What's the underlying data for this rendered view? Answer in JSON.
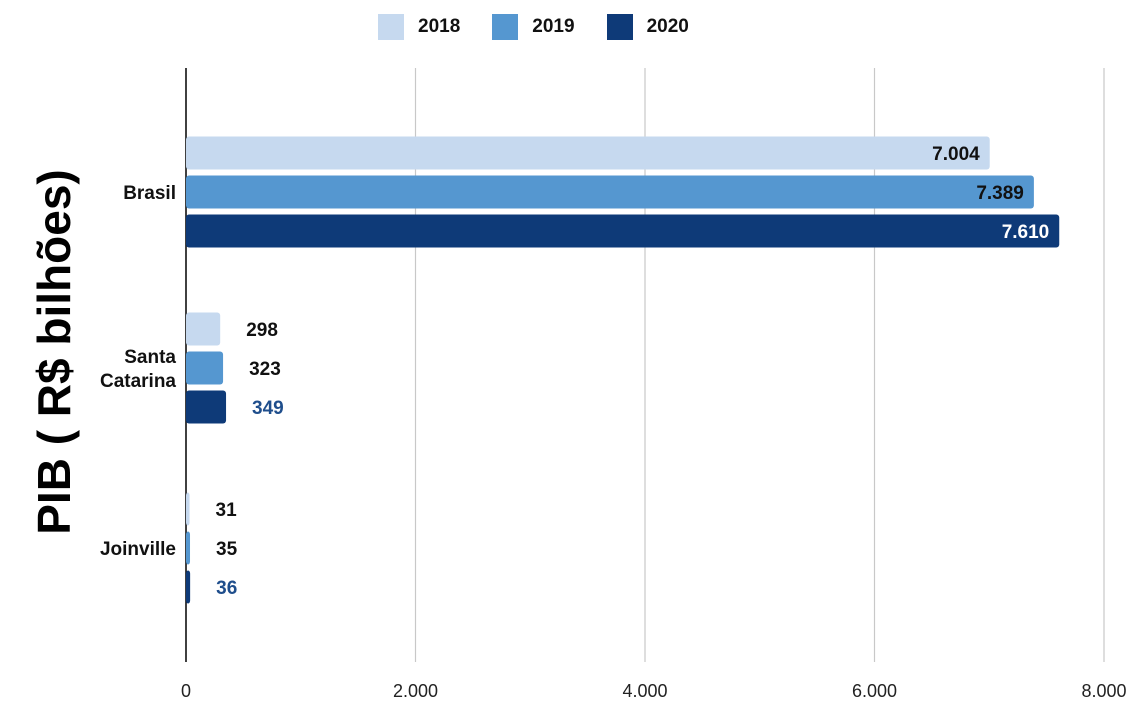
{
  "chart_data": {
    "type": "bar",
    "orientation": "horizontal",
    "ylabel": "PIB ( R$ bilhões)",
    "xlabel": "",
    "title": "",
    "categories": [
      "Brasil",
      "Santa Catarina",
      "Joinville"
    ],
    "category_lines": [
      [
        "Brasil"
      ],
      [
        "Santa",
        "Catarina"
      ],
      [
        "Joinville"
      ]
    ],
    "series": [
      {
        "name": "2018",
        "color": "#c6d9ef",
        "values": [
          7004,
          298,
          31
        ],
        "labels": [
          "7.004",
          "298",
          "31"
        ]
      },
      {
        "name": "2019",
        "color": "#5597d0",
        "values": [
          7389,
          323,
          35
        ],
        "labels": [
          "7.389",
          "323",
          "35"
        ]
      },
      {
        "name": "2020",
        "color": "#0e3a78",
        "values": [
          7610,
          349,
          36
        ],
        "labels": [
          "7.610",
          "349",
          "36"
        ]
      }
    ],
    "xlim": [
      0,
      8000
    ],
    "xticks": [
      0,
      2000,
      4000,
      6000,
      8000
    ],
    "xtick_labels": [
      "0",
      "2.000",
      "4.000",
      "6.000",
      "8.000"
    ],
    "grid": "vertical",
    "legend_position": "top"
  }
}
